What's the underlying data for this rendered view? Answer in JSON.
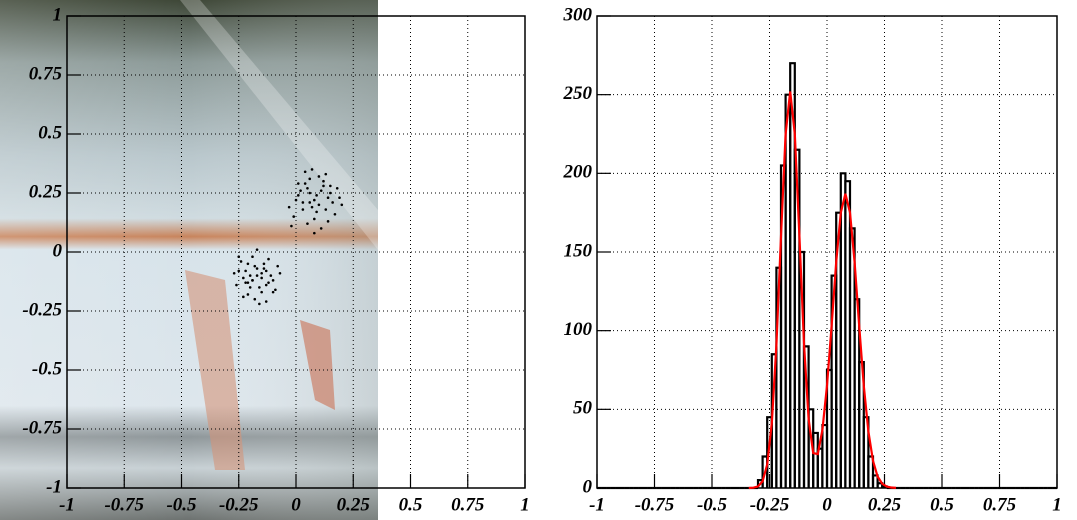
{
  "chart_data": [
    {
      "type": "scatter",
      "color": "#000000",
      "grid": true,
      "xlim": [
        -1,
        1
      ],
      "ylim": [
        -1,
        1
      ],
      "xticks": [
        -1,
        -0.75,
        -0.5,
        -0.25,
        0,
        0.25,
        0.5,
        0.75,
        1
      ],
      "yticks": [
        -1,
        -0.75,
        -0.5,
        -0.25,
        0,
        0.25,
        0.5,
        0.75,
        1
      ],
      "x": [
        0.08,
        0.12,
        0.03,
        0.15,
        0.06,
        -0.01,
        0.1,
        0.18,
        0.05,
        0.13,
        0.01,
        0.09,
        0.16,
        0.04,
        0.11,
        -0.03,
        0.07,
        0.14,
        0.02,
        0.2,
        0.08,
        0.12,
        0.0,
        0.06,
        0.17,
        0.1,
        0.03,
        0.13,
        0.05,
        0.09,
        -0.02,
        0.15,
        0.07,
        0.11,
        0.04,
        0.19,
        0.08,
        0.01,
        0.14,
        0.06,
        -0.17,
        -0.21,
        -0.13,
        -0.25,
        -0.1,
        -0.19,
        -0.15,
        -0.23,
        -0.08,
        -0.18,
        -0.27,
        -0.12,
        -0.2,
        -0.14,
        -0.22,
        -0.16,
        -0.11,
        -0.24,
        -0.09,
        -0.19,
        -0.13,
        -0.26,
        -0.17,
        -0.21,
        -0.15,
        -0.07,
        -0.18,
        -0.23,
        -0.12,
        -0.2,
        -0.16,
        -0.14,
        -0.22,
        -0.1,
        -0.19,
        -0.25,
        -0.13,
        -0.17,
        -0.21,
        -0.15
      ],
      "values": [
        0.22,
        0.28,
        0.18,
        0.25,
        0.31,
        0.15,
        0.2,
        0.27,
        0.12,
        0.33,
        0.24,
        0.17,
        0.21,
        0.29,
        0.1,
        0.19,
        0.35,
        0.23,
        0.26,
        0.2,
        0.14,
        0.3,
        0.22,
        0.25,
        0.16,
        0.32,
        0.21,
        0.18,
        0.27,
        0.24,
        0.11,
        0.28,
        0.19,
        0.26,
        0.34,
        0.23,
        0.08,
        0.29,
        0.13,
        0.21,
        -0.1,
        -0.05,
        -0.14,
        -0.08,
        -0.12,
        -0.02,
        -0.17,
        -0.11,
        -0.06,
        -0.2,
        -0.09,
        -0.03,
        -0.15,
        -0.07,
        -0.13,
        -0.22,
        -0.1,
        -0.04,
        -0.16,
        -0.12,
        -0.08,
        -0.14,
        0.01,
        -0.18,
        -0.11,
        -0.09,
        -0.06,
        -0.19,
        -0.13,
        -0.1,
        -0.15,
        -0.05,
        -0.08,
        -0.17,
        -0.12,
        -0.02,
        -0.21,
        -0.07,
        -0.13,
        -0.09
      ]
    },
    {
      "type": "histogram",
      "color": "#000000",
      "grid": true,
      "xlim": [
        -1,
        1
      ],
      "ylim": [
        0,
        300
      ],
      "xticks": [
        -1,
        -0.75,
        -0.5,
        -0.25,
        0,
        0.25,
        0.5,
        0.75,
        1
      ],
      "yticks": [
        0,
        50,
        100,
        150,
        200,
        250,
        300
      ],
      "bins": [
        -1,
        -0.98,
        -0.96,
        -0.94,
        -0.92,
        -0.9,
        -0.88,
        -0.86,
        -0.84,
        -0.82,
        -0.8,
        -0.78,
        -0.76,
        -0.74,
        -0.72,
        -0.7,
        -0.68,
        -0.66,
        -0.64,
        -0.62,
        -0.6,
        -0.58,
        -0.56,
        -0.54,
        -0.52,
        -0.5,
        -0.48,
        -0.46,
        -0.44,
        -0.42,
        -0.4,
        -0.38,
        -0.36,
        -0.34,
        -0.32,
        -0.3,
        -0.28,
        -0.26,
        -0.24,
        -0.22,
        -0.2,
        -0.18,
        -0.16,
        -0.14,
        -0.12,
        -0.1,
        -0.08,
        -0.06,
        -0.04,
        -0.02,
        0,
        0.02,
        0.04,
        0.06,
        0.08,
        0.1,
        0.12,
        0.14,
        0.16,
        0.18,
        0.2,
        0.22,
        0.24,
        0.26,
        0.28,
        0.3,
        0.32,
        0.34,
        0.36,
        0.38,
        0.4,
        0.42,
        0.44,
        0.46,
        0.48,
        0.5,
        0.52,
        0.54,
        0.56,
        0.58,
        0.6,
        0.62,
        0.64,
        0.66,
        0.68,
        0.7,
        0.72,
        0.74,
        0.76,
        0.78,
        0.8,
        0.82,
        0.84,
        0.86,
        0.88,
        0.9,
        0.92,
        0.94,
        0.96,
        0.98,
        1
      ],
      "values": [
        0,
        0,
        0,
        0,
        0,
        0,
        0,
        0,
        0,
        0,
        0,
        0,
        0,
        0,
        0,
        0,
        0,
        0,
        0,
        0,
        0,
        0,
        0,
        0,
        0,
        0,
        0,
        0,
        0,
        0,
        0,
        0,
        0,
        0,
        0,
        5,
        20,
        45,
        85,
        140,
        205,
        250,
        270,
        215,
        150,
        90,
        50,
        35,
        25,
        40,
        75,
        135,
        175,
        200,
        195,
        165,
        120,
        80,
        45,
        20,
        8,
        3,
        1,
        0,
        0,
        0,
        0,
        0,
        0,
        0,
        0,
        0,
        0,
        0,
        0,
        0,
        0,
        0,
        0,
        0,
        0,
        0,
        0,
        0,
        0,
        0,
        0,
        0,
        0,
        0,
        0,
        0,
        0,
        0,
        0,
        0,
        0,
        0,
        0,
        0
      ],
      "fit": {
        "color": "#ff0000",
        "x": [
          -0.34,
          -0.32,
          -0.3,
          -0.28,
          -0.26,
          -0.24,
          -0.22,
          -0.2,
          -0.18,
          -0.16,
          -0.14,
          -0.12,
          -0.1,
          -0.08,
          -0.06,
          -0.04,
          -0.02,
          0,
          0.02,
          0.04,
          0.06,
          0.08,
          0.1,
          0.12,
          0.14,
          0.16,
          0.18,
          0.2,
          0.22,
          0.24,
          0.26,
          0.28,
          0.3
        ],
        "values": [
          0,
          0.2,
          1,
          4.3,
          14.9,
          41.2,
          90.8,
          160,
          225,
          252,
          225,
          160.3,
          91.7,
          43.9,
          22.2,
          21.6,
          36.9,
          65.1,
          103,
          143.6,
          175,
          187,
          175,
          143.6,
          103,
          64.9,
          35.9,
          17.3,
          7.3,
          2.7,
          0.9,
          0.3,
          0.1
        ]
      }
    }
  ]
}
